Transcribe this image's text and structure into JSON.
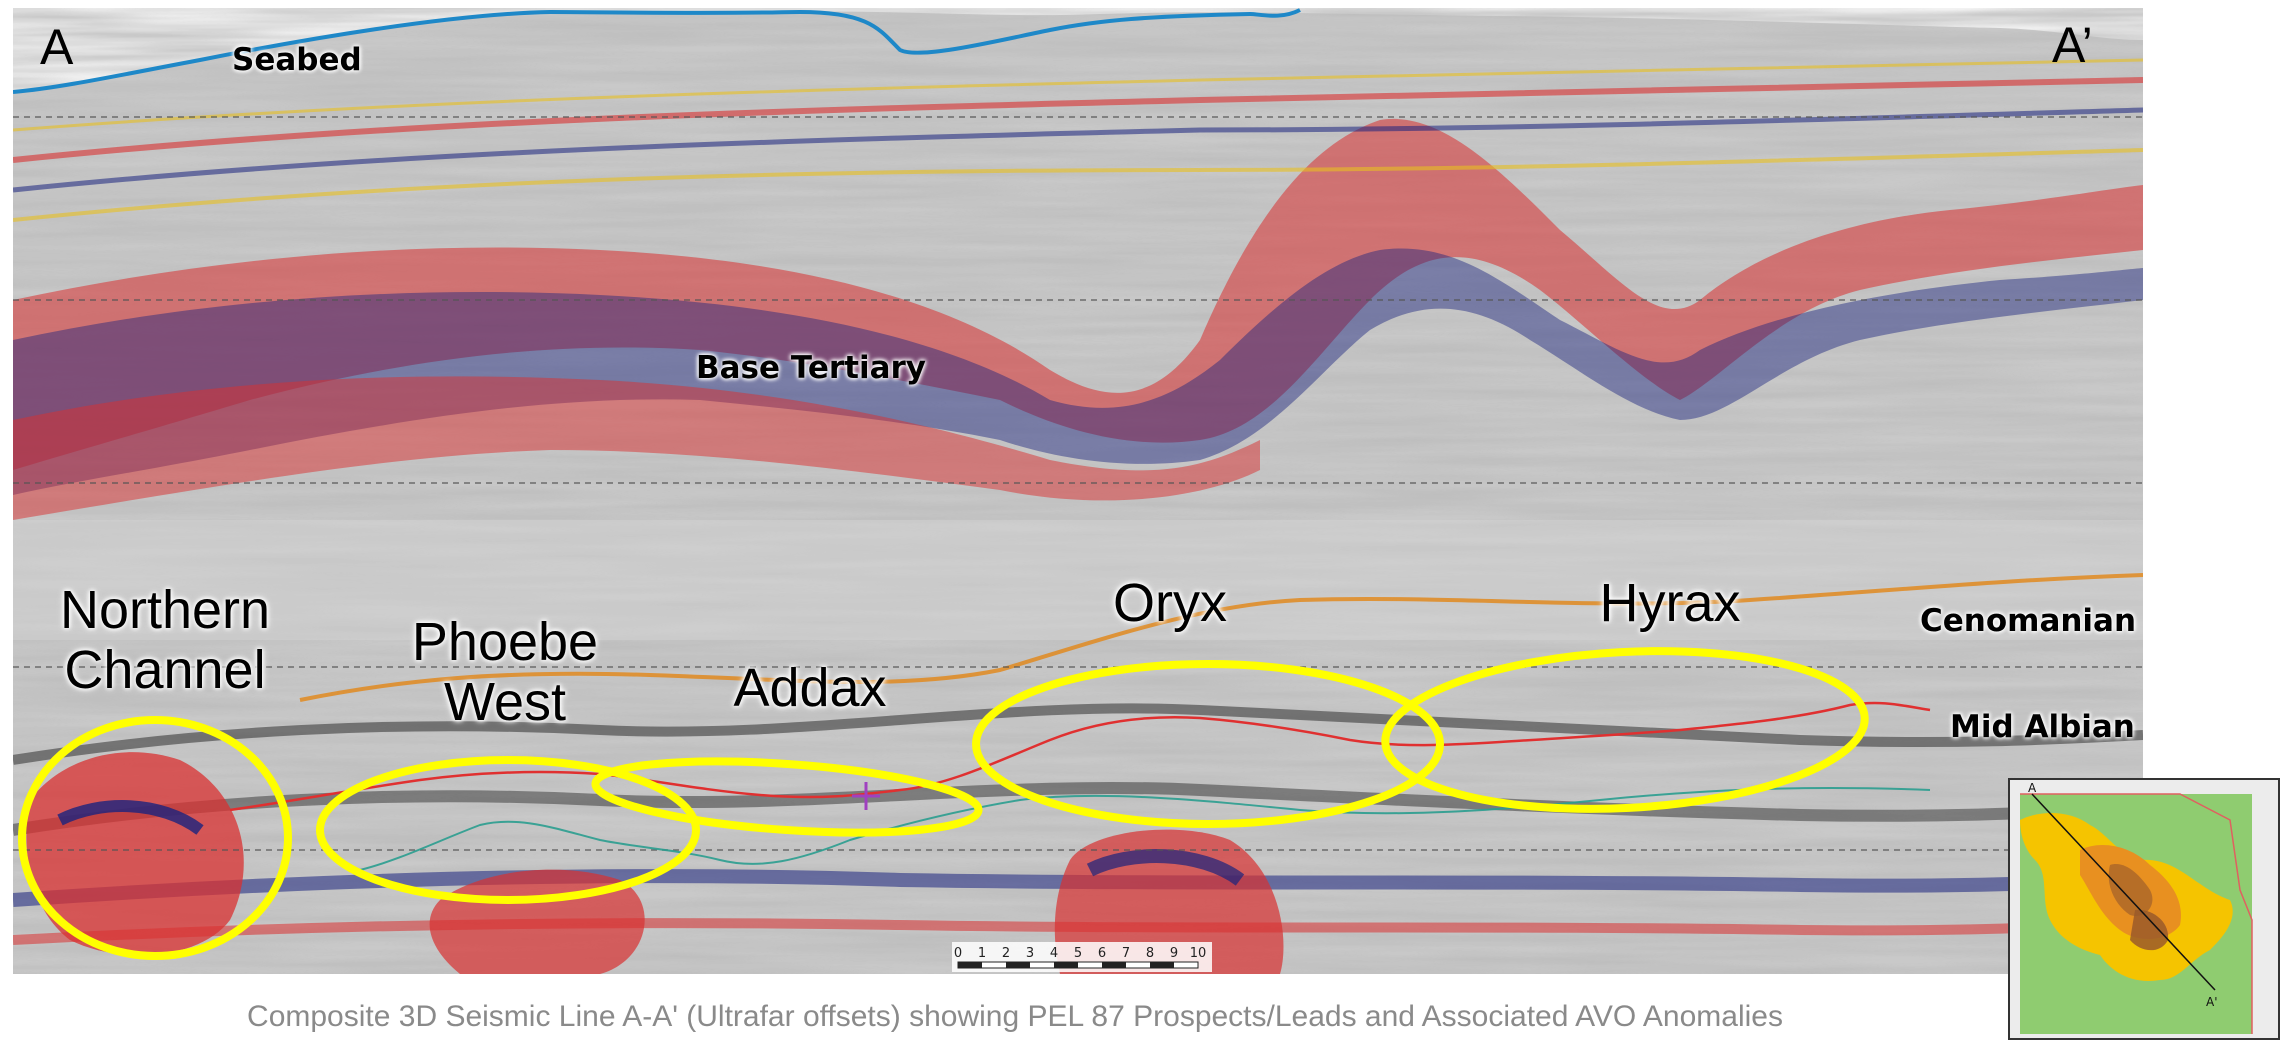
{
  "section": {
    "start_label": "A",
    "end_label": "A’"
  },
  "horizons": {
    "seabed": "Seabed",
    "base_tertiary": "Base Tertiary",
    "cenomanian": "Cenomanian",
    "mid_albian": "Mid Albian"
  },
  "prospects": {
    "northern_channel_line1": "Northern",
    "northern_channel_line2": "Channel",
    "phoebe_west_line1": "Phoebe",
    "phoebe_west_line2": "West",
    "addax": "Addax",
    "oryx": "Oryx",
    "hyrax": "Hyrax"
  },
  "scale_bar": {
    "ticks": [
      "0",
      "1",
      "2",
      "3",
      "4",
      "5",
      "6",
      "7",
      "8",
      "9",
      "10"
    ]
  },
  "inset_map": {
    "start_label": "A",
    "end_label": "A'"
  },
  "caption": "Composite 3D Seismic Line A-A' (Ultrafar offsets) showing PEL 87 Prospects/Leads and Associated AVO Anomalies",
  "colors": {
    "ellipse": "#ffff00",
    "seabed_line": "#1e88c8",
    "mid_albian_line": "#e03030",
    "inset_background": "#8fcc70",
    "inset_prospects": "#f5c400"
  }
}
